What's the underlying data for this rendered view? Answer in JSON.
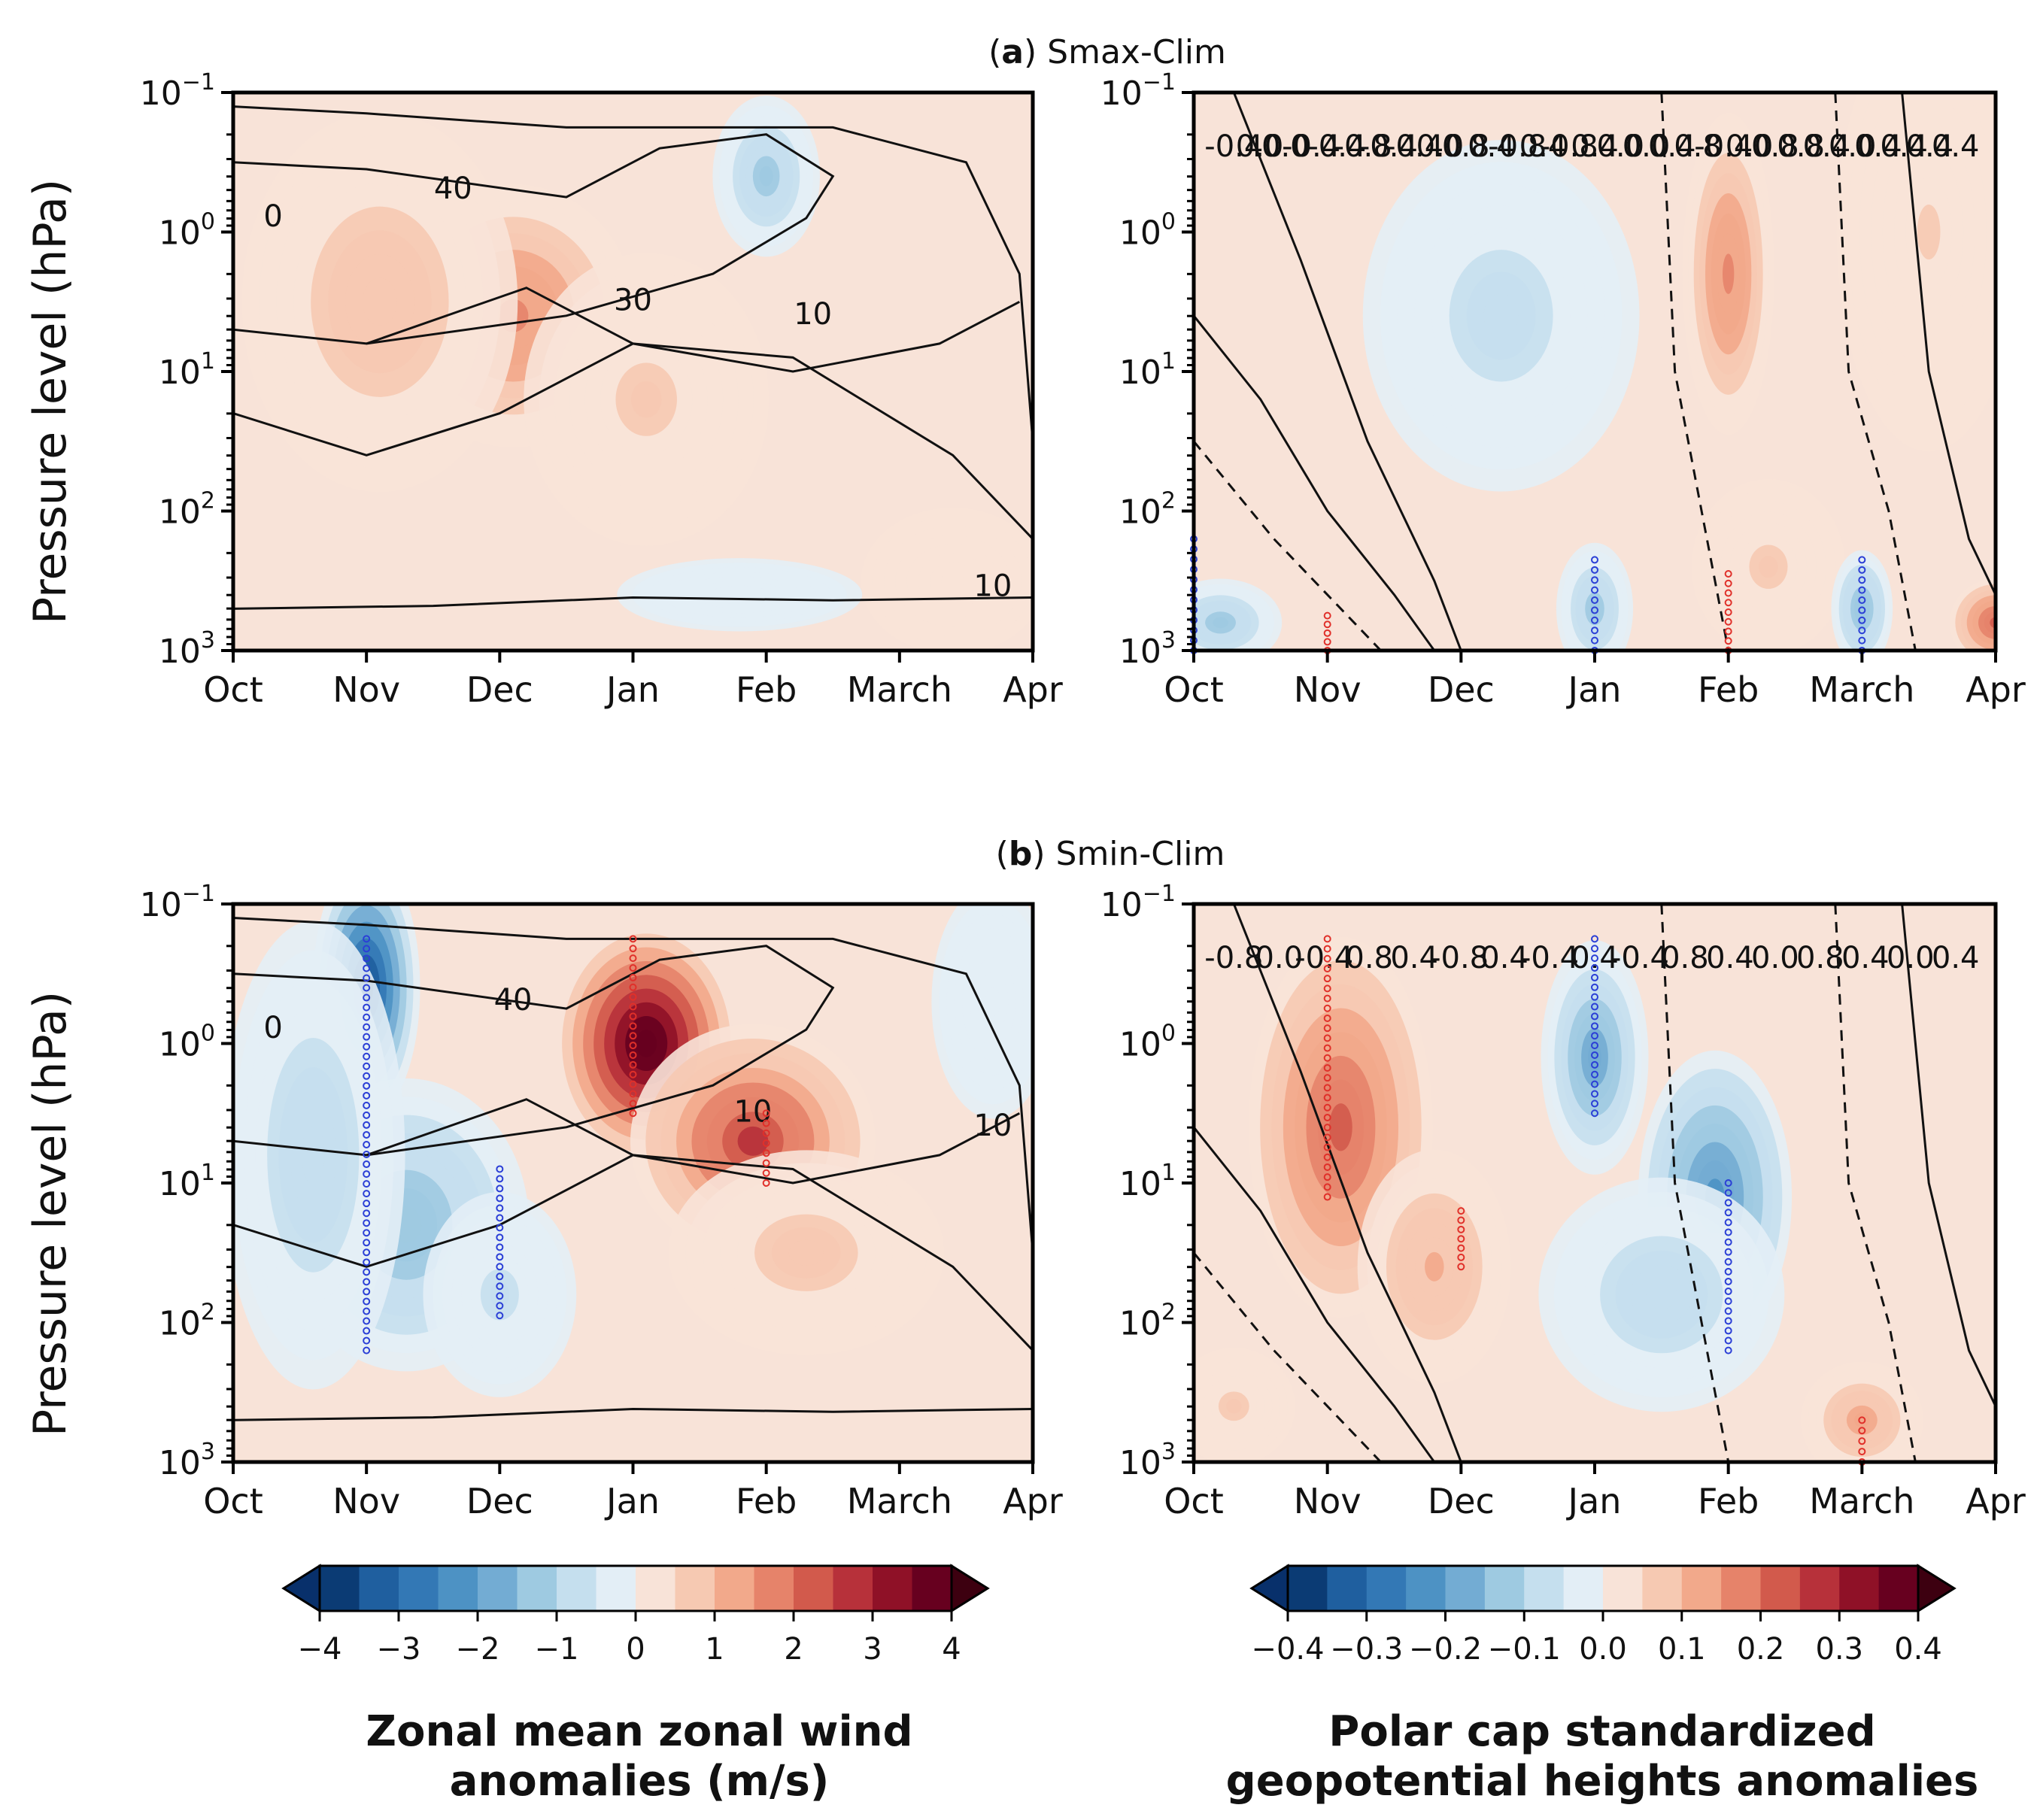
{
  "figure": {
    "panel_a": {
      "letter": "a",
      "title": "Smax-Clim"
    },
    "panel_b": {
      "letter": "b",
      "title": "Smin-Clim"
    },
    "ylabel": "Pressure level (hPa)",
    "left_colorbar": {
      "ticks": [
        "−4",
        "−3",
        "−2",
        "−1",
        "0",
        "1",
        "2",
        "3",
        "4"
      ],
      "label_line1": "Zonal mean zonal wind",
      "label_line2": "anomalies (m/s)"
    },
    "right_colorbar": {
      "ticks": [
        "−0.4",
        "−0.3",
        "−0.2",
        "−0.1",
        "0.0",
        "0.1",
        "0.2",
        "0.3",
        "0.4"
      ],
      "label_line1": "Polar cap standardized",
      "label_line2": "geopotential heights anomalies"
    },
    "colors": {
      "negative_ramp": [
        "#67001f"
      ],
      "diverging": [
        "#0b3b74",
        "#1f5f9f",
        "#3378b5",
        "#4d92c4",
        "#73acd3",
        "#9ecae1",
        "#c5dfee",
        "#e3eef6",
        "#f8e3d8",
        "#f6c9b2",
        "#f2a98b",
        "#e6836a",
        "#d25a4c",
        "#b7313a",
        "#8f1127",
        "#67001f"
      ]
    }
  },
  "chart_data": [
    {
      "id": "a-left",
      "type": "heatmap",
      "title": "(a) Smax-Clim",
      "xlabel": "",
      "ylabel": "Pressure level (hPa)",
      "x_ticks": [
        "Oct",
        "Nov",
        "Dec",
        "Jan",
        "Feb",
        "March",
        "Apr"
      ],
      "y_ticks": [
        "10^-1",
        "10^0",
        "10^1",
        "10^2",
        "10^3"
      ],
      "ylim_hPa": [
        1000,
        0.1
      ],
      "yscale": "log",
      "fill_variable": "Zonal mean zonal wind anomalies (m/s)",
      "fill_range": [
        -4,
        4
      ],
      "anomaly_centers": [
        {
          "month": 2.1,
          "log10_p": 0.6,
          "value": 1.6,
          "sx": 0.8,
          "sy": 0.9
        },
        {
          "month": 1.1,
          "log10_p": 0.5,
          "value": 0.8,
          "sx": 0.9,
          "sy": 1.3
        },
        {
          "month": 3.1,
          "log10_p": 1.2,
          "value": 0.6,
          "sx": 0.8,
          "sy": 1.0
        },
        {
          "month": 4.0,
          "log10_p": -0.4,
          "value": -1.3,
          "sx": 0.35,
          "sy": 0.55
        },
        {
          "month": 3.8,
          "log10_p": 2.6,
          "value": -0.25,
          "sx": 0.8,
          "sy": 0.25
        },
        {
          "month": 5.4,
          "log10_p": 2.5,
          "value": 0.2,
          "sx": 0.6,
          "sy": 0.5
        }
      ],
      "contour_labels": [
        "0",
        "40",
        "30",
        "10",
        "10"
      ],
      "significance_dots": []
    },
    {
      "id": "a-right",
      "type": "heatmap",
      "title": "(a) Smax-Clim",
      "x_ticks": [
        "Oct",
        "Nov",
        "Dec",
        "Jan",
        "Feb",
        "March",
        "Apr"
      ],
      "y_ticks": [
        "10^-1",
        "10^0",
        "10^1",
        "10^2",
        "10^3"
      ],
      "ylim_hPa": [
        1000,
        0.1
      ],
      "yscale": "log",
      "fill_variable": "Polar cap standardized geopotential heights anomalies",
      "fill_range": [
        -0.4,
        0.4
      ],
      "anomaly_centers": [
        {
          "month": 2.3,
          "log10_p": 0.6,
          "value": -0.07,
          "sx": 0.9,
          "sy": 1.2
        },
        {
          "month": 4.0,
          "log10_p": 0.3,
          "value": 0.16,
          "sx": 0.3,
          "sy": 1.1
        },
        {
          "month": 4.3,
          "log10_p": 2.4,
          "value": 0.06,
          "sx": 0.5,
          "sy": 0.6
        },
        {
          "month": 3.0,
          "log10_p": 2.7,
          "value": -0.12,
          "sx": 0.25,
          "sy": 0.45
        },
        {
          "month": 5.0,
          "log10_p": 2.7,
          "value": -0.14,
          "sx": 0.2,
          "sy": 0.4
        },
        {
          "month": 0.2,
          "log10_p": 2.8,
          "value": -0.12,
          "sx": 0.4,
          "sy": 0.3
        },
        {
          "month": 6.0,
          "log10_p": 2.8,
          "value": 0.22,
          "sx": 0.3,
          "sy": 0.3
        },
        {
          "month": 5.5,
          "log10_p": 0.0,
          "value": 0.05,
          "sx": 0.6,
          "sy": 1.5
        }
      ],
      "contour_labels": [
        "-0.4",
        "0.0",
        "0.0",
        "-0.4",
        "-0.4",
        "-0.8",
        "-0.4",
        "-0.4",
        "0.0",
        "0.8",
        "0.4",
        "-0.8",
        "0.4",
        "-0.8",
        "0.4",
        "0.0",
        "0.0",
        "0.4",
        "0.8",
        "-0.4",
        "0.0",
        "0.8",
        "0.8",
        "0.4",
        "0.0",
        "0.4",
        "0.4",
        "0.4",
        "0.4"
      ],
      "significance_dots": [
        {
          "month": 1.0,
          "log10_p_from": 2.75,
          "log10_p_to": 3.0,
          "sign": "positive"
        },
        {
          "month": 3.0,
          "log10_p_from": 2.35,
          "log10_p_to": 3.0,
          "sign": "negative"
        },
        {
          "month": 4.0,
          "log10_p_from": 2.45,
          "log10_p_to": 3.0,
          "sign": "positive"
        },
        {
          "month": 5.0,
          "log10_p_from": 2.35,
          "log10_p_to": 3.0,
          "sign": "negative"
        },
        {
          "month": 0.0,
          "log10_p_from": 2.2,
          "log10_p_to": 3.0,
          "sign": "negative"
        }
      ]
    },
    {
      "id": "b-left",
      "type": "heatmap",
      "title": "(b) Smin-Clim",
      "xlabel": "",
      "ylabel": "Pressure level (hPa)",
      "x_ticks": [
        "Oct",
        "Nov",
        "Dec",
        "Jan",
        "Feb",
        "March",
        "Apr"
      ],
      "y_ticks": [
        "10^-1",
        "10^0",
        "10^1",
        "10^2",
        "10^3"
      ],
      "ylim_hPa": [
        1000,
        0.1
      ],
      "yscale": "log",
      "fill_variable": "Zonal mean zonal wind anomalies (m/s)",
      "fill_range": [
        -4,
        4
      ],
      "anomaly_centers": [
        {
          "month": 1.0,
          "log10_p": -0.4,
          "value": -3.6,
          "sx": 0.35,
          "sy": 0.9
        },
        {
          "month": 1.3,
          "log10_p": 1.3,
          "value": -1.4,
          "sx": 0.8,
          "sy": 1.0
        },
        {
          "month": 0.6,
          "log10_p": 0.8,
          "value": -1.0,
          "sx": 0.6,
          "sy": 1.6
        },
        {
          "month": 2.0,
          "log10_p": 1.8,
          "value": -0.6,
          "sx": 0.5,
          "sy": 0.7
        },
        {
          "month": 3.1,
          "log10_p": 0.0,
          "value": 4.6,
          "sx": 0.55,
          "sy": 0.75
        },
        {
          "month": 3.9,
          "log10_p": 0.7,
          "value": 2.6,
          "sx": 0.8,
          "sy": 0.8
        },
        {
          "month": 4.3,
          "log10_p": 1.5,
          "value": 0.7,
          "sx": 0.9,
          "sy": 0.7
        },
        {
          "month": 5.7,
          "log10_p": -0.3,
          "value": -0.35,
          "sx": 0.4,
          "sy": 0.8
        }
      ],
      "contour_labels": [
        "0",
        "40",
        "10",
        "10"
      ],
      "significance_dots": [
        {
          "month": 1.0,
          "log10_p_from": -0.75,
          "log10_p_to": 2.2,
          "sign": "negative"
        },
        {
          "month": 2.0,
          "log10_p_from": 0.9,
          "log10_p_to": 1.95,
          "sign": "negative"
        },
        {
          "month": 3.0,
          "log10_p_from": -0.75,
          "log10_p_to": 0.5,
          "sign": "positive"
        },
        {
          "month": 4.0,
          "log10_p_from": 0.5,
          "log10_p_to": 1.0,
          "sign": "positive"
        }
      ]
    },
    {
      "id": "b-right",
      "type": "heatmap",
      "title": "(b) Smin-Clim",
      "x_ticks": [
        "Oct",
        "Nov",
        "Dec",
        "Jan",
        "Feb",
        "March",
        "Apr"
      ],
      "y_ticks": [
        "10^-1",
        "10^0",
        "10^1",
        "10^2",
        "10^3"
      ],
      "ylim_hPa": [
        1000,
        0.1
      ],
      "yscale": "log",
      "fill_variable": "Polar cap standardized geopotential heights anomalies",
      "fill_range": [
        -0.4,
        0.4
      ],
      "anomaly_centers": [
        {
          "month": 1.1,
          "log10_p": 0.6,
          "value": 0.2,
          "sx": 0.6,
          "sy": 1.3
        },
        {
          "month": 1.8,
          "log10_p": 1.6,
          "value": 0.1,
          "sx": 0.5,
          "sy": 0.8
        },
        {
          "month": 3.0,
          "log10_p": 0.1,
          "value": -0.2,
          "sx": 0.35,
          "sy": 0.8
        },
        {
          "month": 3.9,
          "log10_p": 1.1,
          "value": -0.22,
          "sx": 0.5,
          "sy": 1.0
        },
        {
          "month": 3.5,
          "log10_p": 1.8,
          "value": -0.1,
          "sx": 0.8,
          "sy": 0.8
        },
        {
          "month": 5.0,
          "log10_p": 2.7,
          "value": 0.12,
          "sx": 0.4,
          "sy": 0.4
        },
        {
          "month": 0.3,
          "log10_p": 2.6,
          "value": 0.06,
          "sx": 0.4,
          "sy": 0.4
        }
      ],
      "contour_labels": [
        "-0.8",
        "0.0",
        "-0.4",
        "0.8",
        "0.4",
        "-0.8",
        "0.4",
        "-0.4",
        "0.4",
        "-0.4",
        "0.8",
        "0.4",
        "0.0",
        "0.8",
        "0.4",
        "0.0",
        "0.4"
      ],
      "significance_dots": [
        {
          "month": 1.0,
          "log10_p_from": -0.75,
          "log10_p_to": 1.1,
          "sign": "positive"
        },
        {
          "month": 2.0,
          "log10_p_from": 1.2,
          "log10_p_to": 1.6,
          "sign": "positive"
        },
        {
          "month": 3.0,
          "log10_p_from": -0.75,
          "log10_p_to": 0.5,
          "sign": "negative"
        },
        {
          "month": 4.0,
          "log10_p_from": 1.0,
          "log10_p_to": 2.2,
          "sign": "negative"
        },
        {
          "month": 5.0,
          "log10_p_from": 2.7,
          "log10_p_to": 3.0,
          "sign": "positive"
        }
      ]
    }
  ]
}
